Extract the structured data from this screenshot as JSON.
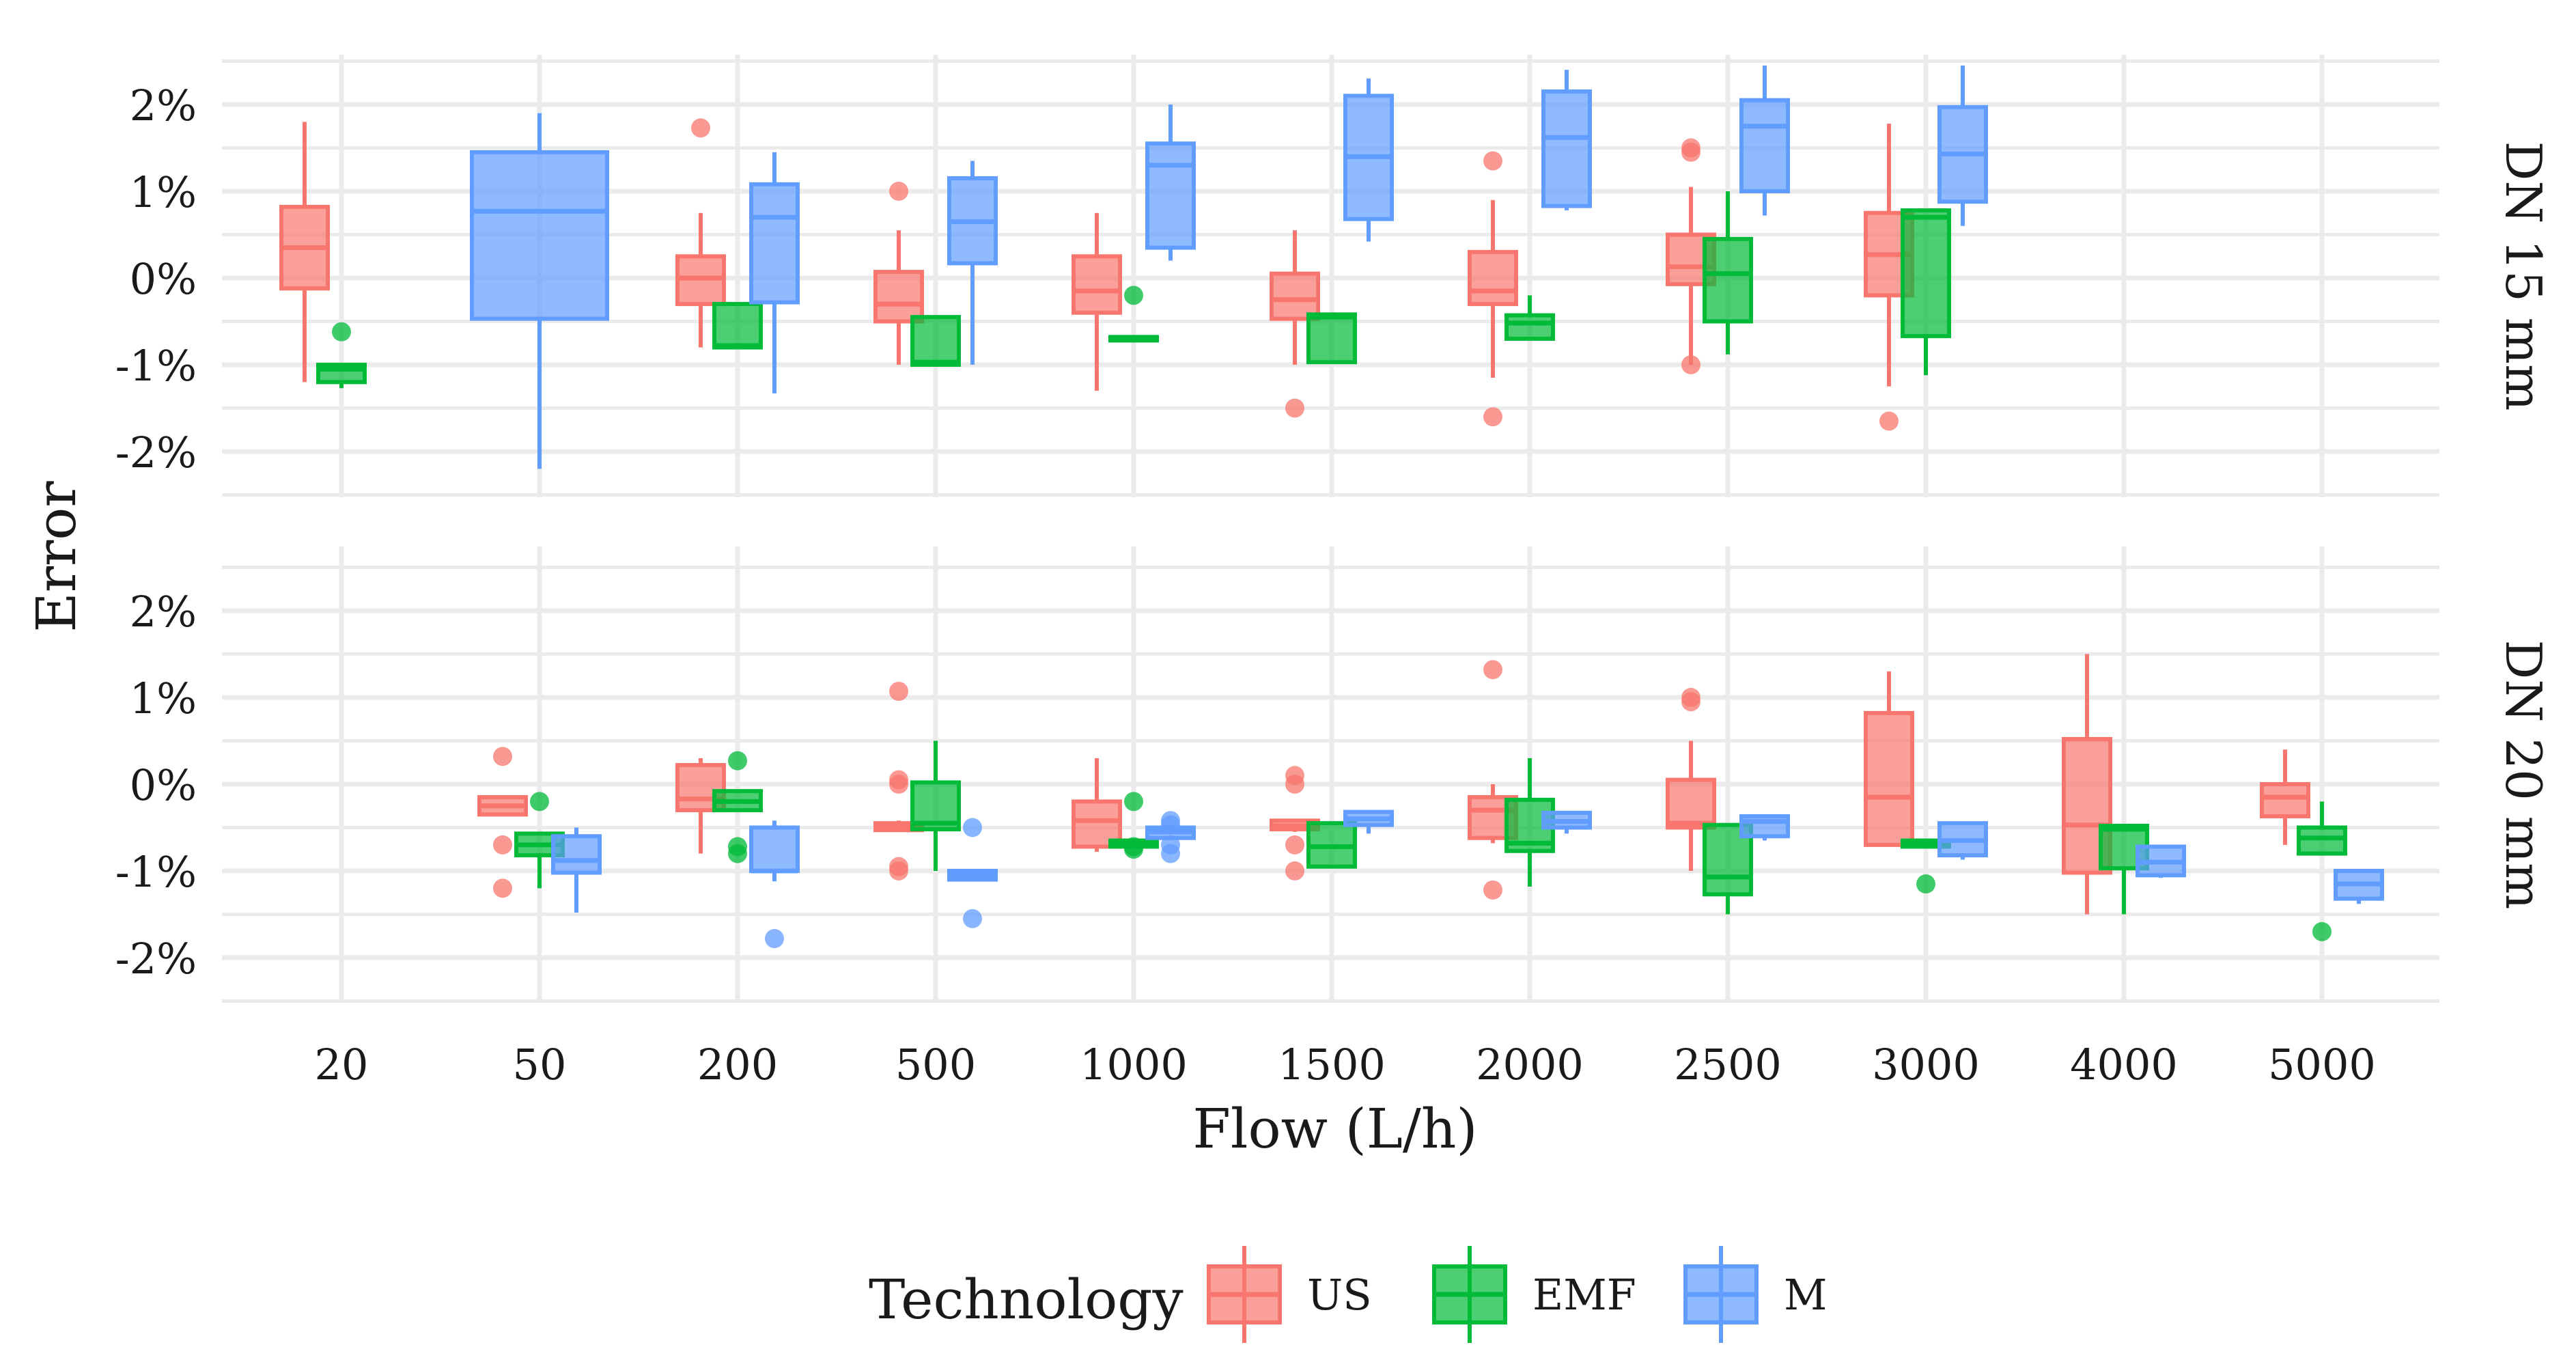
{
  "chart_data": {
    "type": "boxplot",
    "xlabel": "Flow (L/h)",
    "ylabel": "Error",
    "categories": [
      "20",
      "50",
      "200",
      "500",
      "1000",
      "1500",
      "2000",
      "2500",
      "3000",
      "4000",
      "5000"
    ],
    "y_ticks": [
      -2,
      -1,
      0,
      1,
      2
    ],
    "y_tick_labels": [
      "-2%",
      "-1%",
      "0%",
      "1%",
      "2%"
    ],
    "ylim": [
      -2.6,
      2.6
    ],
    "legend": {
      "title": "Technology",
      "position": "bottom",
      "entries": [
        {
          "name": "US",
          "color": "#F8766D"
        },
        {
          "name": "EMF",
          "color": "#00BA38"
        },
        {
          "name": "M",
          "color": "#619CFF"
        }
      ]
    },
    "colors": {
      "US": "#F8766D",
      "EMF": "#00BA38",
      "M": "#619CFF"
    },
    "panels": [
      {
        "label": "DN 15 mm",
        "boxes": [
          {
            "cat": "20",
            "series": "US",
            "lo": -1.2,
            "q1": -0.12,
            "med": 0.35,
            "q3": 0.82,
            "hi": 1.8,
            "out": []
          },
          {
            "cat": "20",
            "series": "EMF",
            "lo": -1.27,
            "q1": -1.2,
            "med": -1.05,
            "q3": -1.0,
            "hi": -1.0,
            "out": [
              -0.62
            ]
          },
          {
            "cat": "50",
            "series": "M",
            "solo": true,
            "lo": -2.2,
            "q1": -0.47,
            "med": 0.77,
            "q3": 1.45,
            "hi": 1.9,
            "out": []
          },
          {
            "cat": "200",
            "series": "US",
            "lo": -0.8,
            "q1": -0.3,
            "med": 0.0,
            "q3": 0.25,
            "hi": 0.75,
            "out": [
              1.73
            ]
          },
          {
            "cat": "200",
            "series": "EMF",
            "lo": -0.8,
            "q1": -0.8,
            "med": -0.78,
            "q3": -0.3,
            "hi": -0.3,
            "out": []
          },
          {
            "cat": "200",
            "series": "M",
            "lo": -1.33,
            "q1": -0.28,
            "med": 0.7,
            "q3": 1.08,
            "hi": 1.45,
            "out": []
          },
          {
            "cat": "500",
            "series": "US",
            "lo": -1.0,
            "q1": -0.5,
            "med": -0.3,
            "q3": 0.07,
            "hi": 0.55,
            "out": [
              1.0
            ]
          },
          {
            "cat": "500",
            "series": "EMF",
            "lo": -1.0,
            "q1": -1.0,
            "med": -0.97,
            "q3": -0.45,
            "hi": -0.45,
            "out": []
          },
          {
            "cat": "500",
            "series": "M",
            "lo": -1.0,
            "q1": 0.17,
            "med": 0.65,
            "q3": 1.15,
            "hi": 1.35,
            "out": []
          },
          {
            "cat": "1000",
            "series": "US",
            "lo": -1.3,
            "q1": -0.4,
            "med": -0.15,
            "q3": 0.25,
            "hi": 0.75,
            "out": []
          },
          {
            "cat": "1000",
            "series": "EMF",
            "lo": -0.72,
            "q1": -0.72,
            "med": -0.7,
            "q3": -0.68,
            "hi": -0.68,
            "out": [
              -0.2
            ]
          },
          {
            "cat": "1000",
            "series": "M",
            "lo": 0.2,
            "q1": 0.35,
            "med": 1.3,
            "q3": 1.55,
            "hi": 2.0,
            "out": []
          },
          {
            "cat": "1500",
            "series": "US",
            "lo": -1.0,
            "q1": -0.47,
            "med": -0.25,
            "q3": 0.05,
            "hi": 0.55,
            "out": [
              -1.5
            ]
          },
          {
            "cat": "1500",
            "series": "EMF",
            "lo": -0.97,
            "q1": -0.97,
            "med": -0.45,
            "q3": -0.42,
            "hi": -0.42,
            "out": []
          },
          {
            "cat": "1500",
            "series": "M",
            "lo": 0.42,
            "q1": 0.68,
            "med": 1.4,
            "q3": 2.1,
            "hi": 2.3,
            "out": []
          },
          {
            "cat": "2000",
            "series": "US",
            "lo": -1.15,
            "q1": -0.3,
            "med": -0.15,
            "q3": 0.3,
            "hi": 0.9,
            "out": [
              1.35,
              -1.6
            ]
          },
          {
            "cat": "2000",
            "series": "EMF",
            "lo": -0.7,
            "q1": -0.7,
            "med": -0.52,
            "q3": -0.43,
            "hi": -0.2,
            "out": []
          },
          {
            "cat": "2000",
            "series": "M",
            "lo": 0.78,
            "q1": 0.83,
            "med": 1.62,
            "q3": 2.15,
            "hi": 2.4,
            "out": []
          },
          {
            "cat": "2500",
            "series": "US",
            "lo": -1.0,
            "q1": -0.07,
            "med": 0.13,
            "q3": 0.5,
            "hi": 1.05,
            "out": [
              1.5,
              1.45,
              -1.0
            ]
          },
          {
            "cat": "2500",
            "series": "EMF",
            "lo": -0.88,
            "q1": -0.5,
            "med": 0.05,
            "q3": 0.45,
            "hi": 1.0,
            "out": []
          },
          {
            "cat": "2500",
            "series": "M",
            "lo": 0.72,
            "q1": 1.0,
            "med": 1.75,
            "q3": 2.05,
            "hi": 2.45,
            "out": []
          },
          {
            "cat": "3000",
            "series": "US",
            "lo": -1.25,
            "q1": -0.2,
            "med": 0.27,
            "q3": 0.75,
            "hi": 1.78,
            "out": [
              -1.65
            ]
          },
          {
            "cat": "3000",
            "series": "EMF",
            "lo": -1.12,
            "q1": -0.67,
            "med": 0.7,
            "q3": 0.78,
            "hi": 0.78,
            "out": []
          },
          {
            "cat": "3000",
            "series": "M",
            "lo": 0.6,
            "q1": 0.88,
            "med": 1.43,
            "q3": 1.97,
            "hi": 2.45,
            "out": []
          }
        ]
      },
      {
        "label": "DN 20 mm",
        "boxes": [
          {
            "cat": "50",
            "series": "US",
            "lo": -0.35,
            "q1": -0.35,
            "med": -0.25,
            "q3": -0.15,
            "hi": -0.15,
            "out": [
              0.32,
              -0.7,
              -1.2
            ]
          },
          {
            "cat": "50",
            "series": "EMF",
            "lo": -1.2,
            "q1": -0.82,
            "med": -0.7,
            "q3": -0.57,
            "hi": -0.57,
            "out": [
              -0.2
            ]
          },
          {
            "cat": "50",
            "series": "M",
            "lo": -1.48,
            "q1": -1.02,
            "med": -0.88,
            "q3": -0.6,
            "hi": -0.5,
            "out": []
          },
          {
            "cat": "200",
            "series": "US",
            "lo": -0.8,
            "q1": -0.3,
            "med": -0.17,
            "q3": 0.22,
            "hi": 0.3,
            "out": []
          },
          {
            "cat": "200",
            "series": "EMF",
            "lo": -0.32,
            "q1": -0.3,
            "med": -0.2,
            "q3": -0.08,
            "hi": -0.08,
            "out": [
              0.27,
              -0.72,
              -0.8
            ]
          },
          {
            "cat": "200",
            "series": "M",
            "lo": -1.12,
            "q1": -1.0,
            "med": -1.0,
            "q3": -0.5,
            "hi": -0.42,
            "out": [
              -1.78
            ]
          },
          {
            "cat": "500",
            "series": "US",
            "lo": -0.55,
            "q1": -0.53,
            "med": -0.5,
            "q3": -0.45,
            "hi": -0.42,
            "out": [
              1.07,
              0.05,
              0.0,
              -0.95,
              -1.0
            ]
          },
          {
            "cat": "500",
            "series": "EMF",
            "lo": -1.0,
            "q1": -0.52,
            "med": -0.45,
            "q3": 0.02,
            "hi": 0.5,
            "out": []
          },
          {
            "cat": "500",
            "series": "M",
            "lo": -1.12,
            "q1": -1.1,
            "med": -1.05,
            "q3": -1.0,
            "hi": -0.98,
            "out": [
              -0.5,
              -1.55
            ]
          },
          {
            "cat": "1000",
            "series": "US",
            "lo": -0.78,
            "q1": -0.72,
            "med": -0.42,
            "q3": -0.2,
            "hi": 0.3,
            "out": []
          },
          {
            "cat": "1000",
            "series": "EMF",
            "lo": -0.72,
            "q1": -0.72,
            "med": -0.7,
            "q3": -0.65,
            "hi": -0.65,
            "out": [
              -0.2,
              -0.72,
              -0.75
            ]
          },
          {
            "cat": "1000",
            "series": "M",
            "lo": -0.62,
            "q1": -0.62,
            "med": -0.55,
            "q3": -0.5,
            "hi": -0.5,
            "out": [
              -0.42,
              -0.47,
              -0.7,
              -0.8
            ]
          },
          {
            "cat": "1500",
            "series": "US",
            "lo": -0.55,
            "q1": -0.52,
            "med": -0.48,
            "q3": -0.42,
            "hi": -0.42,
            "out": [
              0.1,
              0.0,
              -0.7,
              -1.0
            ]
          },
          {
            "cat": "1500",
            "series": "EMF",
            "lo": -0.95,
            "q1": -0.95,
            "med": -0.72,
            "q3": -0.45,
            "hi": -0.45,
            "out": []
          },
          {
            "cat": "1500",
            "series": "M",
            "lo": -0.57,
            "q1": -0.47,
            "med": -0.4,
            "q3": -0.32,
            "hi": -0.32,
            "out": []
          },
          {
            "cat": "2000",
            "series": "US",
            "lo": -0.68,
            "q1": -0.62,
            "med": -0.3,
            "q3": -0.15,
            "hi": 0.0,
            "out": [
              1.32,
              -1.22
            ]
          },
          {
            "cat": "2000",
            "series": "EMF",
            "lo": -1.18,
            "q1": -0.77,
            "med": -0.68,
            "q3": -0.18,
            "hi": 0.3,
            "out": []
          },
          {
            "cat": "2000",
            "series": "M",
            "lo": -0.57,
            "q1": -0.5,
            "med": -0.43,
            "q3": -0.33,
            "hi": -0.33,
            "out": []
          },
          {
            "cat": "2500",
            "series": "US",
            "lo": -1.0,
            "q1": -0.5,
            "med": -0.45,
            "q3": 0.05,
            "hi": 0.5,
            "out": [
              1.0,
              0.95
            ]
          },
          {
            "cat": "2500",
            "series": "EMF",
            "lo": -1.5,
            "q1": -1.27,
            "med": -1.07,
            "q3": -0.47,
            "hi": -0.47,
            "out": []
          },
          {
            "cat": "2500",
            "series": "M",
            "lo": -0.65,
            "q1": -0.6,
            "med": -0.43,
            "q3": -0.37,
            "hi": -0.37,
            "out": []
          },
          {
            "cat": "3000",
            "series": "US",
            "lo": -0.7,
            "q1": -0.7,
            "med": -0.15,
            "q3": 0.82,
            "hi": 1.3,
            "out": []
          },
          {
            "cat": "3000",
            "series": "EMF",
            "lo": -0.72,
            "q1": -0.72,
            "med": -0.7,
            "q3": -0.65,
            "hi": -0.65,
            "out": [
              -1.15
            ]
          },
          {
            "cat": "3000",
            "series": "M",
            "lo": -0.87,
            "q1": -0.82,
            "med": -0.65,
            "q3": -0.45,
            "hi": -0.45,
            "out": []
          },
          {
            "cat": "4000",
            "series": "US",
            "lo": -1.5,
            "q1": -1.02,
            "med": -0.47,
            "q3": 0.52,
            "hi": 1.5,
            "out": []
          },
          {
            "cat": "4000",
            "series": "EMF",
            "lo": -1.5,
            "q1": -0.97,
            "med": -0.52,
            "q3": -0.48,
            "hi": -0.48,
            "out": []
          },
          {
            "cat": "4000",
            "series": "M",
            "lo": -1.08,
            "q1": -1.05,
            "med": -0.9,
            "q3": -0.72,
            "hi": -0.72,
            "out": []
          },
          {
            "cat": "5000",
            "series": "US",
            "lo": -0.7,
            "q1": -0.37,
            "med": -0.15,
            "q3": 0.0,
            "hi": 0.4,
            "out": []
          },
          {
            "cat": "5000",
            "series": "EMF",
            "lo": -0.8,
            "q1": -0.8,
            "med": -0.62,
            "q3": -0.5,
            "hi": -0.2,
            "out": [
              -1.7
            ]
          },
          {
            "cat": "5000",
            "series": "M",
            "lo": -1.38,
            "q1": -1.32,
            "med": -1.15,
            "q3": -1.0,
            "hi": -1.0,
            "out": []
          }
        ]
      }
    ]
  }
}
